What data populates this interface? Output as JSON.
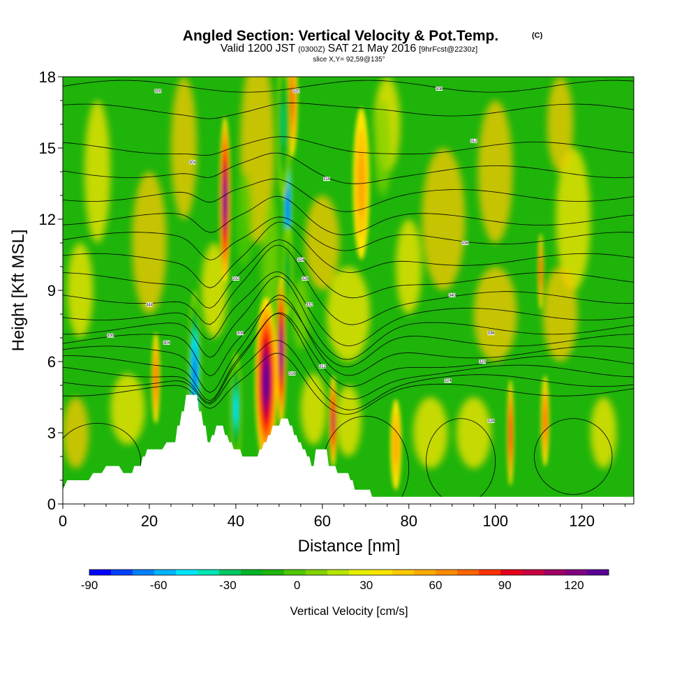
{
  "header": {
    "title": "Angled Section: Vertical Velocity & Pot.Temp.",
    "copyright": "(C)",
    "valid_prefix": "Valid 1200 JST",
    "valid_utc": "(0300Z)",
    "valid_date": "SAT 21 May 2016",
    "forecast_tag": "[9hrFcst@2230z]",
    "slice_info": "slice X,Y= 92,59@135°"
  },
  "chart_data": {
    "type": "heatmap",
    "xlabel": "Distance [nm]",
    "ylabel": "Height [Kft MSL]",
    "xlim": [
      0,
      132
    ],
    "ylim": [
      0,
      18
    ],
    "x_ticks": [
      "0",
      "20",
      "40",
      "60",
      "80",
      "100",
      "120"
    ],
    "y_ticks": [
      "0",
      "3",
      "6",
      "9",
      "12",
      "15",
      "18"
    ],
    "x_tick_values": [
      0,
      20,
      40,
      60,
      80,
      100,
      120
    ],
    "y_tick_values": [
      0,
      3,
      6,
      9,
      12,
      15,
      18
    ],
    "colorbar": {
      "label": "Vertical Velocity [cm/s]",
      "tick_labels": [
        "-90",
        "-60",
        "-30",
        "0",
        "30",
        "60",
        "90",
        "120"
      ],
      "tick_values": [
        -90,
        -60,
        -30,
        0,
        30,
        60,
        90,
        120
      ],
      "range": [
        -90,
        135
      ],
      "step": 7.5,
      "colors": [
        "#0000ff",
        "#0040ff",
        "#0080ff",
        "#00b4ff",
        "#00e6ff",
        "#00e6b4",
        "#00c864",
        "#00b428",
        "#1eb40a",
        "#50c800",
        "#82d200",
        "#b4e600",
        "#e6f000",
        "#ffe600",
        "#ffc800",
        "#ffaa00",
        "#ff8c00",
        "#ff6400",
        "#ff3200",
        "#e6001e",
        "#c80040",
        "#a00064",
        "#820082",
        "#5a0096"
      ]
    },
    "terrain_kft": [
      [
        0,
        0.6
      ],
      [
        1,
        1.0
      ],
      [
        6,
        1.0
      ],
      [
        7,
        1.3
      ],
      [
        9,
        1.3
      ],
      [
        10,
        1.6
      ],
      [
        13,
        1.6
      ],
      [
        14,
        1.3
      ],
      [
        16,
        1.3
      ],
      [
        16.5,
        1.6
      ],
      [
        18,
        1.6
      ],
      [
        18.5,
        2.0
      ],
      [
        19,
        2.0
      ],
      [
        19.5,
        2.3
      ],
      [
        23,
        2.3
      ],
      [
        24,
        2.6
      ],
      [
        26,
        2.6
      ],
      [
        26.5,
        3.3
      ],
      [
        27,
        3.3
      ],
      [
        27.5,
        3.9
      ],
      [
        28,
        3.9
      ],
      [
        28.5,
        4.6
      ],
      [
        31,
        4.6
      ],
      [
        31.5,
        3.9
      ],
      [
        32,
        3.9
      ],
      [
        32.5,
        3.3
      ],
      [
        33,
        3.3
      ],
      [
        33.5,
        2.6
      ],
      [
        34,
        2.6
      ],
      [
        34.5,
        2.9
      ],
      [
        35,
        2.9
      ],
      [
        35.5,
        3.3
      ],
      [
        37,
        3.3
      ],
      [
        37.5,
        2.9
      ],
      [
        38,
        2.9
      ],
      [
        38.5,
        2.6
      ],
      [
        39,
        2.6
      ],
      [
        39.5,
        2.3
      ],
      [
        41,
        2.3
      ],
      [
        41.5,
        2.0
      ],
      [
        45,
        2.0
      ],
      [
        45.5,
        2.3
      ],
      [
        46,
        2.3
      ],
      [
        46.5,
        2.6
      ],
      [
        47,
        2.6
      ],
      [
        47.5,
        2.9
      ],
      [
        48,
        2.9
      ],
      [
        48.5,
        3.3
      ],
      [
        50,
        3.3
      ],
      [
        50.5,
        3.6
      ],
      [
        52,
        3.6
      ],
      [
        52.5,
        3.3
      ],
      [
        53,
        3.3
      ],
      [
        53.5,
        2.9
      ],
      [
        54,
        2.9
      ],
      [
        54.5,
        2.6
      ],
      [
        55,
        2.6
      ],
      [
        55.5,
        2.3
      ],
      [
        56,
        2.3
      ],
      [
        56.5,
        2.0
      ],
      [
        57,
        2.0
      ],
      [
        57.5,
        1.6
      ],
      [
        58,
        1.6
      ],
      [
        58.5,
        2.3
      ],
      [
        61,
        2.3
      ],
      [
        61.5,
        1.6
      ],
      [
        63,
        1.6
      ],
      [
        63.5,
        1.3
      ],
      [
        66,
        1.3
      ],
      [
        66.5,
        1.0
      ],
      [
        67,
        1.0
      ],
      [
        67.5,
        0.6
      ],
      [
        71,
        0.6
      ],
      [
        71.5,
        0.3
      ],
      [
        132,
        0.3
      ]
    ],
    "updrafts": [
      {
        "x": 37.5,
        "y": 12.8,
        "w": 0.8,
        "h": 2.2,
        "v": 95
      },
      {
        "x": 47,
        "y": 5.2,
        "w": 1.6,
        "h": 2.2,
        "v": 95
      },
      {
        "x": 50.5,
        "y": 6.5,
        "w": 0.7,
        "h": 2.0,
        "v": 90
      },
      {
        "x": 62.5,
        "y": 3.5,
        "w": 0.6,
        "h": 1.2,
        "v": 70
      },
      {
        "x": 21.5,
        "y": 5.3,
        "w": 0.6,
        "h": 1.2,
        "v": 40
      },
      {
        "x": 103.5,
        "y": 3.0,
        "w": 0.5,
        "h": 1.4,
        "v": 55
      },
      {
        "x": 110.5,
        "y": 9.8,
        "w": 0.4,
        "h": 1.0,
        "v": 50
      },
      {
        "x": 111.5,
        "y": 3.5,
        "w": 0.6,
        "h": 1.2,
        "v": 40
      },
      {
        "x": 69,
        "y": 13.5,
        "w": 1.2,
        "h": 2.0,
        "v": 28
      },
      {
        "x": 77,
        "y": 2.5,
        "w": 0.8,
        "h": 1.2,
        "v": 28
      },
      {
        "x": 53,
        "y": 17.0,
        "w": 0.8,
        "h": 1.5,
        "v": 38
      }
    ],
    "downdrafts": [
      {
        "x": 52,
        "y": 12.5,
        "w": 0.7,
        "h": 2.0,
        "v": -85
      },
      {
        "x": 30.5,
        "y": 5.5,
        "w": 1.0,
        "h": 2.2,
        "v": -80
      },
      {
        "x": 40,
        "y": 4.0,
        "w": 0.9,
        "h": 1.5,
        "v": -55
      },
      {
        "x": 51,
        "y": 16.0,
        "w": 1.0,
        "h": 2.0,
        "v": -40
      },
      {
        "x": 52,
        "y": 9.8,
        "w": 0.8,
        "h": 1.2,
        "v": -35
      }
    ],
    "theta_contour_labels": [
      "300",
      "304",
      "308",
      "312",
      "316",
      "320",
      "324",
      "328",
      "332",
      "336",
      "340",
      "344"
    ]
  }
}
